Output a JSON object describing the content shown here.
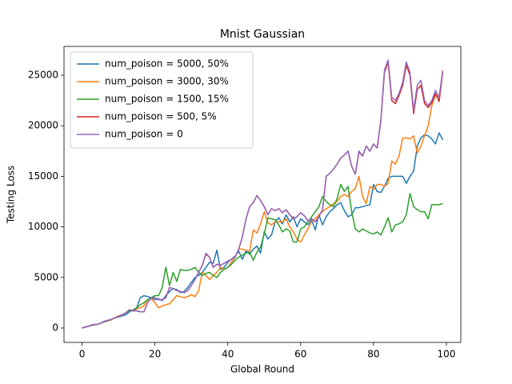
{
  "chart_data": {
    "type": "line",
    "title": "Mnist Gaussian",
    "xlabel": "Global Round",
    "ylabel": "Testing Loss",
    "x": [
      0,
      1,
      2,
      3,
      4,
      5,
      6,
      7,
      8,
      9,
      10,
      11,
      12,
      13,
      14,
      15,
      16,
      17,
      18,
      19,
      20,
      21,
      22,
      23,
      24,
      25,
      26,
      27,
      28,
      29,
      30,
      31,
      32,
      33,
      34,
      35,
      36,
      37,
      38,
      39,
      40,
      41,
      42,
      43,
      44,
      45,
      46,
      47,
      48,
      49,
      50,
      51,
      52,
      53,
      54,
      55,
      56,
      57,
      58,
      59,
      60,
      61,
      62,
      63,
      64,
      65,
      66,
      67,
      68,
      69,
      70,
      71,
      72,
      73,
      74,
      75,
      76,
      77,
      78,
      79,
      80,
      81,
      82,
      83,
      84,
      85,
      86,
      87,
      88,
      89,
      90,
      91,
      92,
      93,
      94,
      95,
      96,
      97,
      98,
      99
    ],
    "xlim": [
      -4.95,
      103.95
    ],
    "xticks": [
      0,
      20,
      40,
      60,
      80,
      100
    ],
    "ylim": [
      -1424,
      27848
    ],
    "yticks": [
      0,
      5000,
      10000,
      15000,
      20000,
      25000
    ],
    "legend": "upper left",
    "series": [
      {
        "name": "num_poison = 5000, 50%",
        "color": "#1f77b4",
        "values": [
          0,
          100,
          200,
          300,
          350,
          450,
          600,
          750,
          850,
          1000,
          1100,
          1200,
          1300,
          1600,
          1800,
          2000,
          3000,
          3200,
          3100,
          3000,
          2800,
          2900,
          2700,
          3200,
          3600,
          3900,
          3800,
          3500,
          3600,
          4000,
          4500,
          5000,
          5200,
          5500,
          6000,
          6500,
          6400,
          7700,
          5800,
          6000,
          6500,
          6800,
          7100,
          7600,
          6800,
          7600,
          7300,
          7800,
          8100,
          7400,
          9500,
          8800,
          9200,
          10500,
          10900,
          10300,
          11200,
          10500,
          11000,
          10000,
          10800,
          10500,
          10200,
          10700,
          9700,
          11200,
          10200,
          11000,
          11500,
          11800,
          12200,
          12400,
          11600,
          11000,
          11200,
          11900,
          11900,
          12000,
          12100,
          12200,
          14200,
          13500,
          13400,
          14000,
          14800,
          15000,
          15000,
          15000,
          15000,
          14300,
          15000,
          15500,
          18000,
          18800,
          19100,
          19000,
          18700,
          18200,
          19300,
          18600
        ]
      },
      {
        "name": "num_poison = 3000, 30%",
        "color": "#ff7f0e",
        "values": [
          0,
          100,
          200,
          300,
          350,
          450,
          600,
          700,
          800,
          1000,
          1200,
          1300,
          1500,
          1700,
          1700,
          1900,
          2000,
          2200,
          2800,
          2900,
          2500,
          2000,
          2200,
          2300,
          2400,
          2800,
          3200,
          3100,
          3000,
          3100,
          3300,
          3100,
          3700,
          5500,
          5200,
          4800,
          5200,
          5500,
          6000,
          5800,
          6000,
          6500,
          7000,
          7800,
          7800,
          7700,
          7600,
          9700,
          9400,
          10300,
          11500,
          10400,
          10200,
          10500,
          10500,
          10500,
          10800,
          10000,
          9500,
          8800,
          8500,
          9200,
          9800,
          10500,
          10800,
          11200,
          11500,
          11800,
          12000,
          12300,
          12500,
          13000,
          13200,
          13000,
          13500,
          13800,
          15000,
          13000,
          12300,
          14000,
          13700,
          14200,
          14200,
          14000,
          14300,
          16500,
          16200,
          17000,
          18800,
          18800,
          18700,
          19000,
          17300,
          18000,
          19000,
          20000,
          22000,
          23000,
          22800,
          25500
        ]
      },
      {
        "name": "num_poison = 1500, 15%",
        "color": "#2ca02c",
        "values": [
          0,
          100,
          200,
          300,
          350,
          450,
          600,
          700,
          850,
          1000,
          1100,
          1300,
          1500,
          1700,
          1700,
          2000,
          2300,
          2500,
          2800,
          3000,
          3200,
          3200,
          4000,
          6000,
          4200,
          5500,
          4600,
          5800,
          5700,
          5700,
          5800,
          6000,
          5500,
          5200,
          5400,
          5500,
          5200,
          5000,
          5500,
          5800,
          6000,
          6300,
          6700,
          7000,
          7200,
          7400,
          7500,
          6700,
          7500,
          8000,
          9300,
          10900,
          10800,
          10700,
          10200,
          9500,
          9800,
          9600,
          8500,
          8500,
          9800,
          10000,
          10500,
          11000,
          11500,
          12000,
          13000,
          12500,
          12200,
          12000,
          12800,
          14200,
          13500,
          14000,
          11500,
          9800,
          9500,
          9800,
          9600,
          9400,
          9300,
          9500,
          9200,
          10000,
          10900,
          9500,
          10200,
          10300,
          10500,
          11200,
          13300,
          12000,
          11700,
          11500,
          11500,
          10800,
          12200,
          12200,
          12200,
          12300
        ]
      },
      {
        "name": "num_poison = 500, 5%",
        "color": "#d62728",
        "values": [
          0,
          100,
          200,
          350,
          350,
          450,
          650,
          750,
          850,
          1000,
          1150,
          1300,
          1500,
          1800,
          1700,
          1700,
          1600,
          1600,
          2500,
          3000,
          3000,
          2800,
          2800,
          3000,
          4000,
          3900,
          3700,
          3600,
          3500,
          3700,
          4200,
          4800,
          5500,
          6200,
          7300,
          7000,
          6000,
          6300,
          6200,
          6400,
          6600,
          6800,
          7000,
          7800,
          9000,
          10800,
          12000,
          12400,
          13100,
          12600,
          12000,
          11200,
          11800,
          11600,
          11800,
          11400,
          11700,
          11200,
          10800,
          11000,
          11400,
          11100,
          10600,
          10800,
          10500,
          11000,
          11700,
          15000,
          15300,
          15700,
          16200,
          16800,
          17100,
          17500,
          16000,
          15200,
          17400,
          17000,
          18000,
          17500,
          18200,
          17800,
          20500,
          25300,
          26300,
          22500,
          22200,
          23000,
          24000,
          26000,
          25000,
          21200,
          23600,
          24000,
          22200,
          21800,
          22300,
          23200,
          22400,
          25300
        ]
      },
      {
        "name": "num_poison = 0",
        "color": "#9467bd",
        "values": [
          0,
          100,
          200,
          350,
          350,
          450,
          650,
          750,
          850,
          1000,
          1150,
          1300,
          1500,
          1800,
          1700,
          1700,
          1600,
          1600,
          2500,
          3000,
          3000,
          2800,
          2800,
          3000,
          4000,
          3900,
          3700,
          3600,
          3500,
          3700,
          4200,
          4800,
          5500,
          6200,
          7400,
          7000,
          6000,
          6300,
          6200,
          6400,
          6600,
          6800,
          7000,
          7800,
          9000,
          10800,
          12000,
          12400,
          13100,
          12600,
          12000,
          11200,
          11800,
          11600,
          11800,
          11400,
          11700,
          11200,
          10800,
          11000,
          11400,
          11100,
          10600,
          10800,
          10500,
          11000,
          11700,
          15000,
          15300,
          15700,
          16200,
          16800,
          17100,
          17500,
          16000,
          15200,
          17500,
          17000,
          18000,
          17500,
          18200,
          17800,
          20500,
          25500,
          26500,
          22800,
          22500,
          23200,
          24300,
          26300,
          25300,
          21500,
          24000,
          24500,
          22500,
          22000,
          22500,
          23500,
          22800,
          25400
        ]
      }
    ]
  }
}
